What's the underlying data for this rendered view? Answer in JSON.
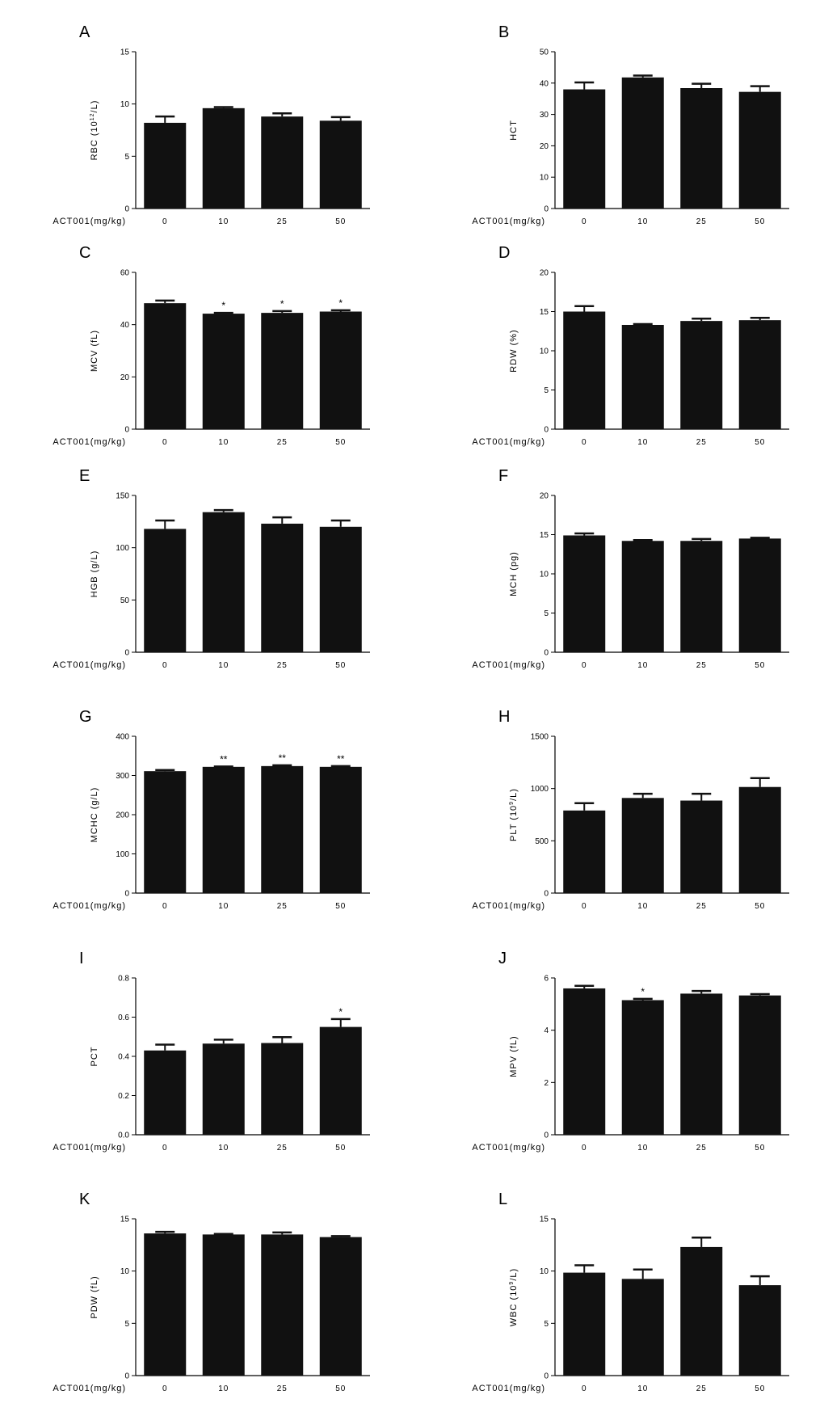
{
  "chart_data": [
    {
      "type": "bar",
      "panel": "A",
      "ylabel": "RBC (10",
      "ylabel_sup": "12",
      "ylabel_suffix": "/L)",
      "xlabel": "ACT001(mg/kg)",
      "categories": [
        "0",
        "10",
        "25",
        "50"
      ],
      "values": [
        8.2,
        9.6,
        8.8,
        8.4
      ],
      "errors": [
        0.6,
        0.1,
        0.3,
        0.35
      ],
      "sig": [
        "",
        "",
        "",
        ""
      ],
      "ylim": [
        0,
        15
      ],
      "yticks": [
        0,
        5,
        10,
        15
      ]
    },
    {
      "type": "bar",
      "panel": "B",
      "ylabel": "HCT",
      "xlabel": "ACT001(mg/kg)",
      "categories": [
        "0",
        "10",
        "25",
        "50"
      ],
      "values": [
        38,
        41.8,
        38.4,
        37.2
      ],
      "errors": [
        2.2,
        0.6,
        1.4,
        1.8
      ],
      "sig": [
        "",
        "",
        "",
        ""
      ],
      "ylim": [
        0,
        50
      ],
      "yticks": [
        0,
        10,
        20,
        30,
        40,
        50
      ]
    },
    {
      "type": "bar",
      "panel": "C",
      "ylabel": "MCV (fL)",
      "xlabel": "ACT001(mg/kg)",
      "categories": [
        "0",
        "10",
        "25",
        "50"
      ],
      "values": [
        48.2,
        44.2,
        44.5,
        45
      ],
      "errors": [
        1,
        0.3,
        0.7,
        0.5
      ],
      "sig": [
        "",
        "*",
        "*",
        "*"
      ],
      "ylim": [
        0,
        60
      ],
      "yticks": [
        0,
        20,
        40,
        60
      ]
    },
    {
      "type": "bar",
      "panel": "D",
      "ylabel": "RDW (%)",
      "xlabel": "ACT001(mg/kg)",
      "categories": [
        "0",
        "10",
        "25",
        "50"
      ],
      "values": [
        15,
        13.3,
        13.8,
        13.9
      ],
      "errors": [
        0.7,
        0.1,
        0.3,
        0.3
      ],
      "sig": [
        "",
        "",
        "",
        ""
      ],
      "ylim": [
        0,
        20
      ],
      "yticks": [
        0,
        5,
        10,
        15,
        20
      ]
    },
    {
      "type": "bar",
      "panel": "E",
      "ylabel": "HGB (g/L)",
      "xlabel": "ACT001(mg/kg)",
      "categories": [
        "0",
        "10",
        "25",
        "50"
      ],
      "values": [
        118,
        134,
        123,
        120
      ],
      "errors": [
        8,
        2,
        6,
        6
      ],
      "sig": [
        "",
        "",
        "",
        ""
      ],
      "ylim": [
        0,
        150
      ],
      "yticks": [
        0,
        50,
        100,
        150
      ]
    },
    {
      "type": "bar",
      "panel": "F",
      "ylabel": "MCH (pg)",
      "xlabel": "ACT001(mg/kg)",
      "categories": [
        "0",
        "10",
        "25",
        "50"
      ],
      "values": [
        14.9,
        14.2,
        14.2,
        14.5
      ],
      "errors": [
        0.25,
        0.1,
        0.25,
        0.1
      ],
      "sig": [
        "",
        "",
        "",
        ""
      ],
      "ylim": [
        0,
        20
      ],
      "yticks": [
        0,
        5,
        10,
        15,
        20
      ]
    },
    {
      "type": "bar",
      "panel": "G",
      "ylabel": "MCHC (g/L)",
      "xlabel": "ACT001(mg/kg)",
      "categories": [
        "0",
        "10",
        "25",
        "50"
      ],
      "values": [
        311,
        322,
        324,
        322
      ],
      "errors": [
        3,
        1,
        2,
        2
      ],
      "sig": [
        "",
        "**",
        "**",
        "**"
      ],
      "ylim": [
        0,
        400
      ],
      "yticks": [
        0,
        100,
        200,
        300,
        400
      ]
    },
    {
      "type": "bar",
      "panel": "H",
      "ylabel": "PLT (10",
      "ylabel_sup": "9",
      "ylabel_suffix": "/L)",
      "xlabel": "ACT001(mg/kg)",
      "categories": [
        "0",
        "10",
        "25",
        "50"
      ],
      "values": [
        790,
        910,
        885,
        1015
      ],
      "errors": [
        70,
        40,
        65,
        85
      ],
      "sig": [
        "",
        "",
        "",
        ""
      ],
      "ylim": [
        0,
        1500
      ],
      "yticks": [
        0,
        500,
        1000,
        1500
      ]
    },
    {
      "type": "bar",
      "panel": "I",
      "ylabel": "PCT",
      "xlabel": "ACT001(mg/kg)",
      "categories": [
        "0",
        "10",
        "25",
        "50"
      ],
      "values": [
        0.43,
        0.465,
        0.468,
        0.55
      ],
      "errors": [
        0.03,
        0.02,
        0.03,
        0.04
      ],
      "sig": [
        "",
        "",
        "",
        "*"
      ],
      "ylim": [
        0,
        0.8
      ],
      "yticks": [
        "0.0",
        "0.2",
        "0.4",
        "0.6",
        "0.8"
      ]
    },
    {
      "type": "bar",
      "panel": "J",
      "ylabel": "MPV (fL)",
      "xlabel": "ACT001(mg/kg)",
      "categories": [
        "0",
        "10",
        "25",
        "50"
      ],
      "values": [
        5.6,
        5.15,
        5.4,
        5.33
      ],
      "errors": [
        0.1,
        0.05,
        0.1,
        0.05
      ],
      "sig": [
        "",
        "*",
        "",
        ""
      ],
      "ylim": [
        0,
        6
      ],
      "yticks": [
        0,
        2,
        4,
        6
      ]
    },
    {
      "type": "bar",
      "panel": "K",
      "ylabel": "PDW (fL)",
      "xlabel": "ACT001(mg/kg)",
      "categories": [
        "0",
        "10",
        "25",
        "50"
      ],
      "values": [
        13.6,
        13.5,
        13.5,
        13.25
      ],
      "errors": [
        0.15,
        0.05,
        0.2,
        0.1
      ],
      "sig": [
        "",
        "",
        "",
        ""
      ],
      "ylim": [
        0,
        15
      ],
      "yticks": [
        0,
        5,
        10,
        15
      ]
    },
    {
      "type": "bar",
      "panel": "L",
      "ylabel": "WBC (10",
      "ylabel_sup": "9",
      "ylabel_suffix": "/L)",
      "xlabel": "ACT001(mg/kg)",
      "categories": [
        "0",
        "10",
        "25",
        "50"
      ],
      "values": [
        9.85,
        9.25,
        12.3,
        8.65
      ],
      "errors": [
        0.7,
        0.9,
        0.9,
        0.85
      ],
      "sig": [
        "",
        "",
        "",
        ""
      ],
      "ylim": [
        0,
        15
      ],
      "yticks": [
        0,
        5,
        10,
        15
      ]
    }
  ],
  "colors": {
    "bar": "#111111",
    "axis": "#000000"
  }
}
